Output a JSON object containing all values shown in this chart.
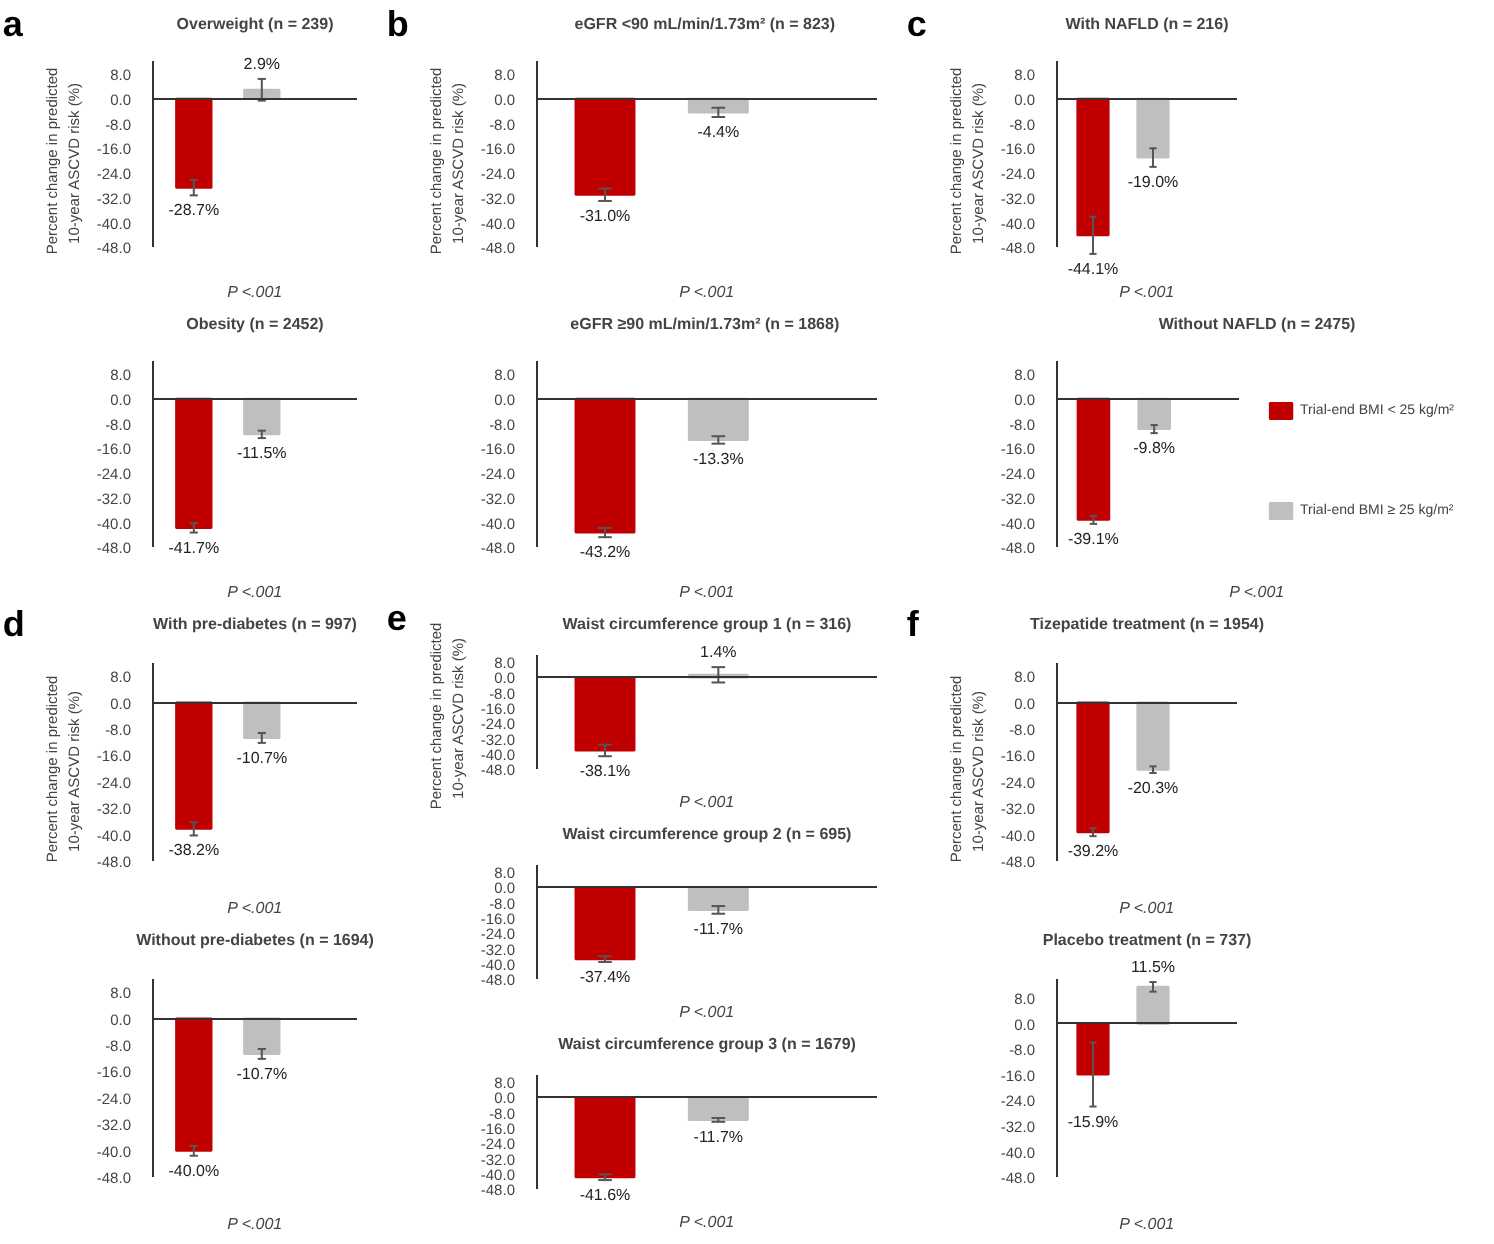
{
  "chart_data": [
    {
      "type": "bar",
      "title": "Overweight (n = 239)",
      "ylabel": "Percent change in predicted 10-year ASCVD risk  (%)",
      "categories": [
        null
      ],
      "series": [
        {
          "color": "#c00000",
          "values": [
            -28.7
          ],
          "errors": [
            2.5
          ],
          "value_labels": [
            "-28.7%"
          ]
        },
        {
          "color": "#bfbfbf",
          "values": [
            2.9
          ],
          "errors": [
            3.5
          ],
          "value_labels": [
            "2.9%"
          ]
        }
      ],
      "ylim": [
        -48,
        12
      ],
      "yticks": [
        {
          "value": 8,
          "label": "8.0"
        },
        {
          "value": 0,
          "label": "0.0"
        },
        {
          "value": -8,
          "label": "-8.0"
        },
        {
          "value": -16,
          "label": "-16.0"
        },
        {
          "value": -24,
          "label": "-24.0"
        },
        {
          "value": -32,
          "label": "-32.0"
        },
        {
          "value": -40,
          "label": "-40.0"
        },
        {
          "value": -48,
          "label": "-48.0"
        }
      ],
      "tick_labels": "y",
      "annotations": [
        "P <.001",
        "a"
      ]
    },
    {
      "type": "bar",
      "title": "Obesity (n = 2452)",
      "categories": [
        null
      ],
      "series": [
        {
          "color": "#c00000",
          "values": [
            -41.7
          ],
          "errors": [
            1.5
          ],
          "value_labels": [
            "-41.7%"
          ]
        },
        {
          "color": "#bfbfbf",
          "values": [
            -11.5
          ],
          "errors": [
            1.2
          ],
          "value_labels": [
            "-11.5%"
          ]
        }
      ],
      "ylim": [
        -48,
        12
      ],
      "yticks": [
        {
          "value": 8,
          "label": "8.0"
        },
        {
          "value": 0,
          "label": "0.0"
        },
        {
          "value": -8,
          "label": "-8.0"
        },
        {
          "value": -16,
          "label": "-16.0"
        },
        {
          "value": -24,
          "label": "-24.0"
        },
        {
          "value": -32,
          "label": "-32.0"
        },
        {
          "value": -40,
          "label": "-40.0"
        },
        {
          "value": -48,
          "label": "-48.0"
        }
      ],
      "tick_labels": "y",
      "annotations": [
        "P <.001"
      ]
    },
    {
      "type": "bar",
      "title": "eGFR <90  mL/min/1.73m² (n = 823)",
      "ylabel": "Percent change in predicted 10-year ASCVD risk  (%)",
      "categories": [
        null
      ],
      "series": [
        {
          "color": "#c00000",
          "values": [
            -31.0
          ],
          "errors": [
            2.0
          ],
          "value_labels": [
            "-31.0%"
          ]
        },
        {
          "color": "#bfbfbf",
          "values": [
            -4.4
          ],
          "errors": [
            1.5
          ],
          "value_labels": [
            "-4.4%"
          ]
        }
      ],
      "ylim": [
        -48,
        12
      ],
      "yticks": [
        {
          "value": 8,
          "label": "8.0"
        },
        {
          "value": 0,
          "label": "0.0"
        },
        {
          "value": -8,
          "label": "-8.0"
        },
        {
          "value": -16,
          "label": "-16.0"
        },
        {
          "value": -24,
          "label": "-24.0"
        },
        {
          "value": -32,
          "label": "-32.0"
        },
        {
          "value": -40,
          "label": "-40.0"
        },
        {
          "value": -48,
          "label": "-48.0"
        }
      ],
      "tick_labels": "y",
      "annotations": [
        "P <.001",
        "b"
      ]
    },
    {
      "type": "bar",
      "title": "eGFR ≥90 mL/min/1.73m²  (n = 1868)",
      "categories": [
        null
      ],
      "series": [
        {
          "color": "#c00000",
          "values": [
            -43.2
          ],
          "errors": [
            1.5
          ],
          "value_labels": [
            "-43.2%"
          ]
        },
        {
          "color": "#bfbfbf",
          "values": [
            -13.3
          ],
          "errors": [
            1.2
          ],
          "value_labels": [
            "-13.3%"
          ]
        }
      ],
      "ylim": [
        -48,
        12
      ],
      "yticks": [
        {
          "value": 8,
          "label": "8.0"
        },
        {
          "value": 0,
          "label": "0.0"
        },
        {
          "value": -8,
          "label": "-8.0"
        },
        {
          "value": -16,
          "label": "-16.0"
        },
        {
          "value": -24,
          "label": "-24.0"
        },
        {
          "value": -32,
          "label": "-32.0"
        },
        {
          "value": -40,
          "label": "-40.0"
        },
        {
          "value": -48,
          "label": "-48.0"
        }
      ],
      "tick_labels": "y",
      "annotations": [
        "P <.001"
      ]
    },
    {
      "type": "bar",
      "title": "With NAFLD (n = 216)",
      "ylabel": "Percent change in predicted 10-year ASCVD risk  (%)",
      "categories": [
        null
      ],
      "series": [
        {
          "color": "#c00000",
          "values": [
            -44.1
          ],
          "errors": [
            6.0
          ],
          "value_labels": [
            "-44.1%"
          ]
        },
        {
          "color": "#bfbfbf",
          "values": [
            -19.0
          ],
          "errors": [
            3.0
          ],
          "value_labels": [
            "-19.0%"
          ]
        }
      ],
      "ylim": [
        -48,
        12
      ],
      "yticks": [
        {
          "value": 8,
          "label": "8.0"
        },
        {
          "value": 0,
          "label": "0.0"
        },
        {
          "value": -8,
          "label": "-8.0"
        },
        {
          "value": -16,
          "label": "-16.0"
        },
        {
          "value": -24,
          "label": "-24.0"
        },
        {
          "value": -32,
          "label": "-32.0"
        },
        {
          "value": -40,
          "label": "-40.0"
        },
        {
          "value": -48,
          "label": "-48.0"
        }
      ],
      "tick_labels": "y",
      "annotations": [
        "P <.001",
        "c"
      ]
    },
    {
      "type": "bar",
      "title": "Without NAFLD (n = 2475)",
      "categories": [
        null
      ],
      "legend": "right",
      "series": [
        {
          "name": "Trial-end BMI < 25 kg/m²",
          "color": "#c00000",
          "values": [
            -39.1
          ],
          "errors": [
            1.3
          ],
          "value_labels": [
            "-39.1%"
          ]
        },
        {
          "name": "Trial-end BMI ≥ 25 kg/m²",
          "color": "#bfbfbf",
          "values": [
            -9.8
          ],
          "errors": [
            1.3
          ],
          "value_labels": [
            "-9.8%"
          ]
        }
      ],
      "ylim": [
        -48,
        12
      ],
      "yticks": [
        {
          "value": 8,
          "label": "8.0"
        },
        {
          "value": 0,
          "label": "0.0"
        },
        {
          "value": -8,
          "label": "-8.0"
        },
        {
          "value": -16,
          "label": "-16.0"
        },
        {
          "value": -24,
          "label": "-24.0"
        },
        {
          "value": -32,
          "label": "-32.0"
        },
        {
          "value": -40,
          "label": "-40.0"
        },
        {
          "value": -48,
          "label": "-48.0"
        }
      ],
      "tick_labels": "y",
      "annotations": [
        "P <.001"
      ]
    },
    {
      "type": "bar",
      "title": "With pre-diabetes (n = 997)",
      "ylabel": "Percent change in predicted 10-year ASCVD risk  (%)",
      "categories": [
        null
      ],
      "series": [
        {
          "color": "#c00000",
          "values": [
            -38.2
          ],
          "errors": [
            2.0
          ],
          "value_labels": [
            "-38.2%"
          ]
        },
        {
          "color": "#bfbfbf",
          "values": [
            -10.7
          ],
          "errors": [
            1.5
          ],
          "value_labels": [
            "-10.7%"
          ]
        }
      ],
      "ylim": [
        -48,
        12
      ],
      "yticks": [
        {
          "value": 8,
          "label": "8.0"
        },
        {
          "value": 0,
          "label": "0.0"
        },
        {
          "value": -8,
          "label": "-8.0"
        },
        {
          "value": -16,
          "label": "-16.0"
        },
        {
          "value": -24,
          "label": "-24.0"
        },
        {
          "value": -32,
          "label": "-32.0"
        },
        {
          "value": -40,
          "label": "-40.0"
        },
        {
          "value": -48,
          "label": "-48.0"
        }
      ],
      "tick_labels": "y",
      "annotations": [
        "P <.001",
        "d"
      ]
    },
    {
      "type": "bar",
      "title": "Without pre-diabetes (n = 1694)",
      "categories": [
        null
      ],
      "series": [
        {
          "color": "#c00000",
          "values": [
            -40.0
          ],
          "errors": [
            1.5
          ],
          "value_labels": [
            "-40.0%"
          ]
        },
        {
          "color": "#bfbfbf",
          "values": [
            -10.7
          ],
          "errors": [
            1.5
          ],
          "value_labels": [
            "-10.7%"
          ]
        }
      ],
      "ylim": [
        -48,
        12
      ],
      "yticks": [
        {
          "value": 8,
          "label": "8.0"
        },
        {
          "value": 0,
          "label": "0.0"
        },
        {
          "value": -8,
          "label": "-8.0"
        },
        {
          "value": -16,
          "label": "-16.0"
        },
        {
          "value": -24,
          "label": "-24.0"
        },
        {
          "value": -32,
          "label": "-32.0"
        },
        {
          "value": -40,
          "label": "-40.0"
        },
        {
          "value": -48,
          "label": "-48.0"
        }
      ],
      "tick_labels": "y",
      "annotations": [
        "P <.001"
      ]
    },
    {
      "type": "bar",
      "title": "Waist circumference group 1 (n = 316)",
      "ylabel": "Percent change in predicted 10-year ASCVD risk  (%)",
      "categories": [
        null
      ],
      "series": [
        {
          "color": "#c00000",
          "values": [
            -38.1
          ],
          "errors": [
            3.0
          ],
          "value_labels": [
            "-38.1%"
          ]
        },
        {
          "color": "#bfbfbf",
          "values": [
            1.4
          ],
          "errors": [
            4.0
          ],
          "value_labels": [
            "1.4%"
          ]
        }
      ],
      "ylim": [
        -48,
        12
      ],
      "yticks": [
        {
          "value": 8,
          "label": "8.0"
        },
        {
          "value": 0,
          "label": "0.0"
        },
        {
          "value": -8,
          "label": "-8.0"
        },
        {
          "value": -16,
          "label": "-16.0"
        },
        {
          "value": -24,
          "label": "-24.0"
        },
        {
          "value": -32,
          "label": "-32.0"
        },
        {
          "value": -40,
          "label": "-40.0"
        },
        {
          "value": -48,
          "label": "-48.0"
        }
      ],
      "tick_labels": "y",
      "annotations": [
        "P <.001",
        "e"
      ]
    },
    {
      "type": "bar",
      "title": "Waist circumference group 2 (n = 695)",
      "categories": [
        null
      ],
      "series": [
        {
          "color": "#c00000",
          "values": [
            -37.4
          ],
          "errors": [
            1.5
          ],
          "value_labels": [
            "-37.4%"
          ]
        },
        {
          "color": "#bfbfbf",
          "values": [
            -11.7
          ],
          "errors": [
            2.0
          ],
          "value_labels": [
            "-11.7%"
          ]
        }
      ],
      "ylim": [
        -48,
        12
      ],
      "yticks": [
        {
          "value": 8,
          "label": "8.0"
        },
        {
          "value": 0,
          "label": "0.0"
        },
        {
          "value": -8,
          "label": "-8.0"
        },
        {
          "value": -16,
          "label": "-16.0"
        },
        {
          "value": -24,
          "label": "-24.0"
        },
        {
          "value": -32,
          "label": "-32.0"
        },
        {
          "value": -40,
          "label": "-40.0"
        },
        {
          "value": -48,
          "label": "-48.0"
        }
      ],
      "tick_labels": "y",
      "annotations": [
        "P <.001"
      ]
    },
    {
      "type": "bar",
      "title": "Waist circumference group 3 (n = 1679)",
      "categories": [
        null
      ],
      "series": [
        {
          "color": "#c00000",
          "values": [
            -41.6
          ],
          "errors": [
            1.5
          ],
          "value_labels": [
            "-41.6%"
          ]
        },
        {
          "color": "#bfbfbf",
          "values": [
            -11.7
          ],
          "errors": [
            1.0
          ],
          "value_labels": [
            "-11.7%"
          ]
        }
      ],
      "ylim": [
        -48,
        12
      ],
      "yticks": [
        {
          "value": 8,
          "label": "8.0"
        },
        {
          "value": 0,
          "label": "0.0"
        },
        {
          "value": -8,
          "label": "-8.0"
        },
        {
          "value": -16,
          "label": "-16.0"
        },
        {
          "value": -24,
          "label": "-24.0"
        },
        {
          "value": -32,
          "label": "-32.0"
        },
        {
          "value": -40,
          "label": "-40.0"
        },
        {
          "value": -48,
          "label": "-48.0"
        }
      ],
      "tick_labels": "y",
      "annotations": [
        "P <.001"
      ]
    },
    {
      "type": "bar",
      "title": "Tizepatide treatment (n = 1954)",
      "ylabel": "Percent change in predicted 10-year ASCVD risk  (%)",
      "categories": [
        null
      ],
      "series": [
        {
          "color": "#c00000",
          "values": [
            -39.2
          ],
          "errors": [
            1.2
          ],
          "value_labels": [
            "-39.2%"
          ]
        },
        {
          "color": "#bfbfbf",
          "values": [
            -20.3
          ],
          "errors": [
            1.0
          ],
          "value_labels": [
            "-20.3%"
          ]
        }
      ],
      "ylim": [
        -48,
        12
      ],
      "yticks": [
        {
          "value": 8,
          "label": "8.0"
        },
        {
          "value": 0,
          "label": "0.0"
        },
        {
          "value": -8,
          "label": "-8.0"
        },
        {
          "value": -16,
          "label": "-16.0"
        },
        {
          "value": -24,
          "label": "-24.0"
        },
        {
          "value": -32,
          "label": "-32.0"
        },
        {
          "value": -40,
          "label": "-40.0"
        },
        {
          "value": -48,
          "label": "-48.0"
        }
      ],
      "tick_labels": "y",
      "annotations": [
        "P <.001",
        "f"
      ]
    },
    {
      "type": "bar",
      "title": "Placebo treatment (n = 737)",
      "categories": [
        null
      ],
      "series": [
        {
          "color": "#c00000",
          "values": [
            -15.9
          ],
          "errors": [
            10.0
          ],
          "value_labels": [
            "-15.9%"
          ]
        },
        {
          "color": "#bfbfbf",
          "values": [
            11.5
          ],
          "errors": [
            1.5
          ],
          "value_labels": [
            "11.5%"
          ]
        }
      ],
      "ylim": [
        -48,
        14
      ],
      "yticks": [
        {
          "value": 8,
          "label": "8.0"
        },
        {
          "value": 0,
          "label": "0.0"
        },
        {
          "value": -8,
          "label": "-8.0"
        },
        {
          "value": -16,
          "label": "-16.0"
        },
        {
          "value": -24,
          "label": "-24.0"
        },
        {
          "value": -32,
          "label": "-32.0"
        },
        {
          "value": -40,
          "label": "-40.0"
        },
        {
          "value": -48,
          "label": "-48.0"
        }
      ],
      "tick_labels": "y",
      "annotations": [
        "P <.001"
      ]
    }
  ]
}
